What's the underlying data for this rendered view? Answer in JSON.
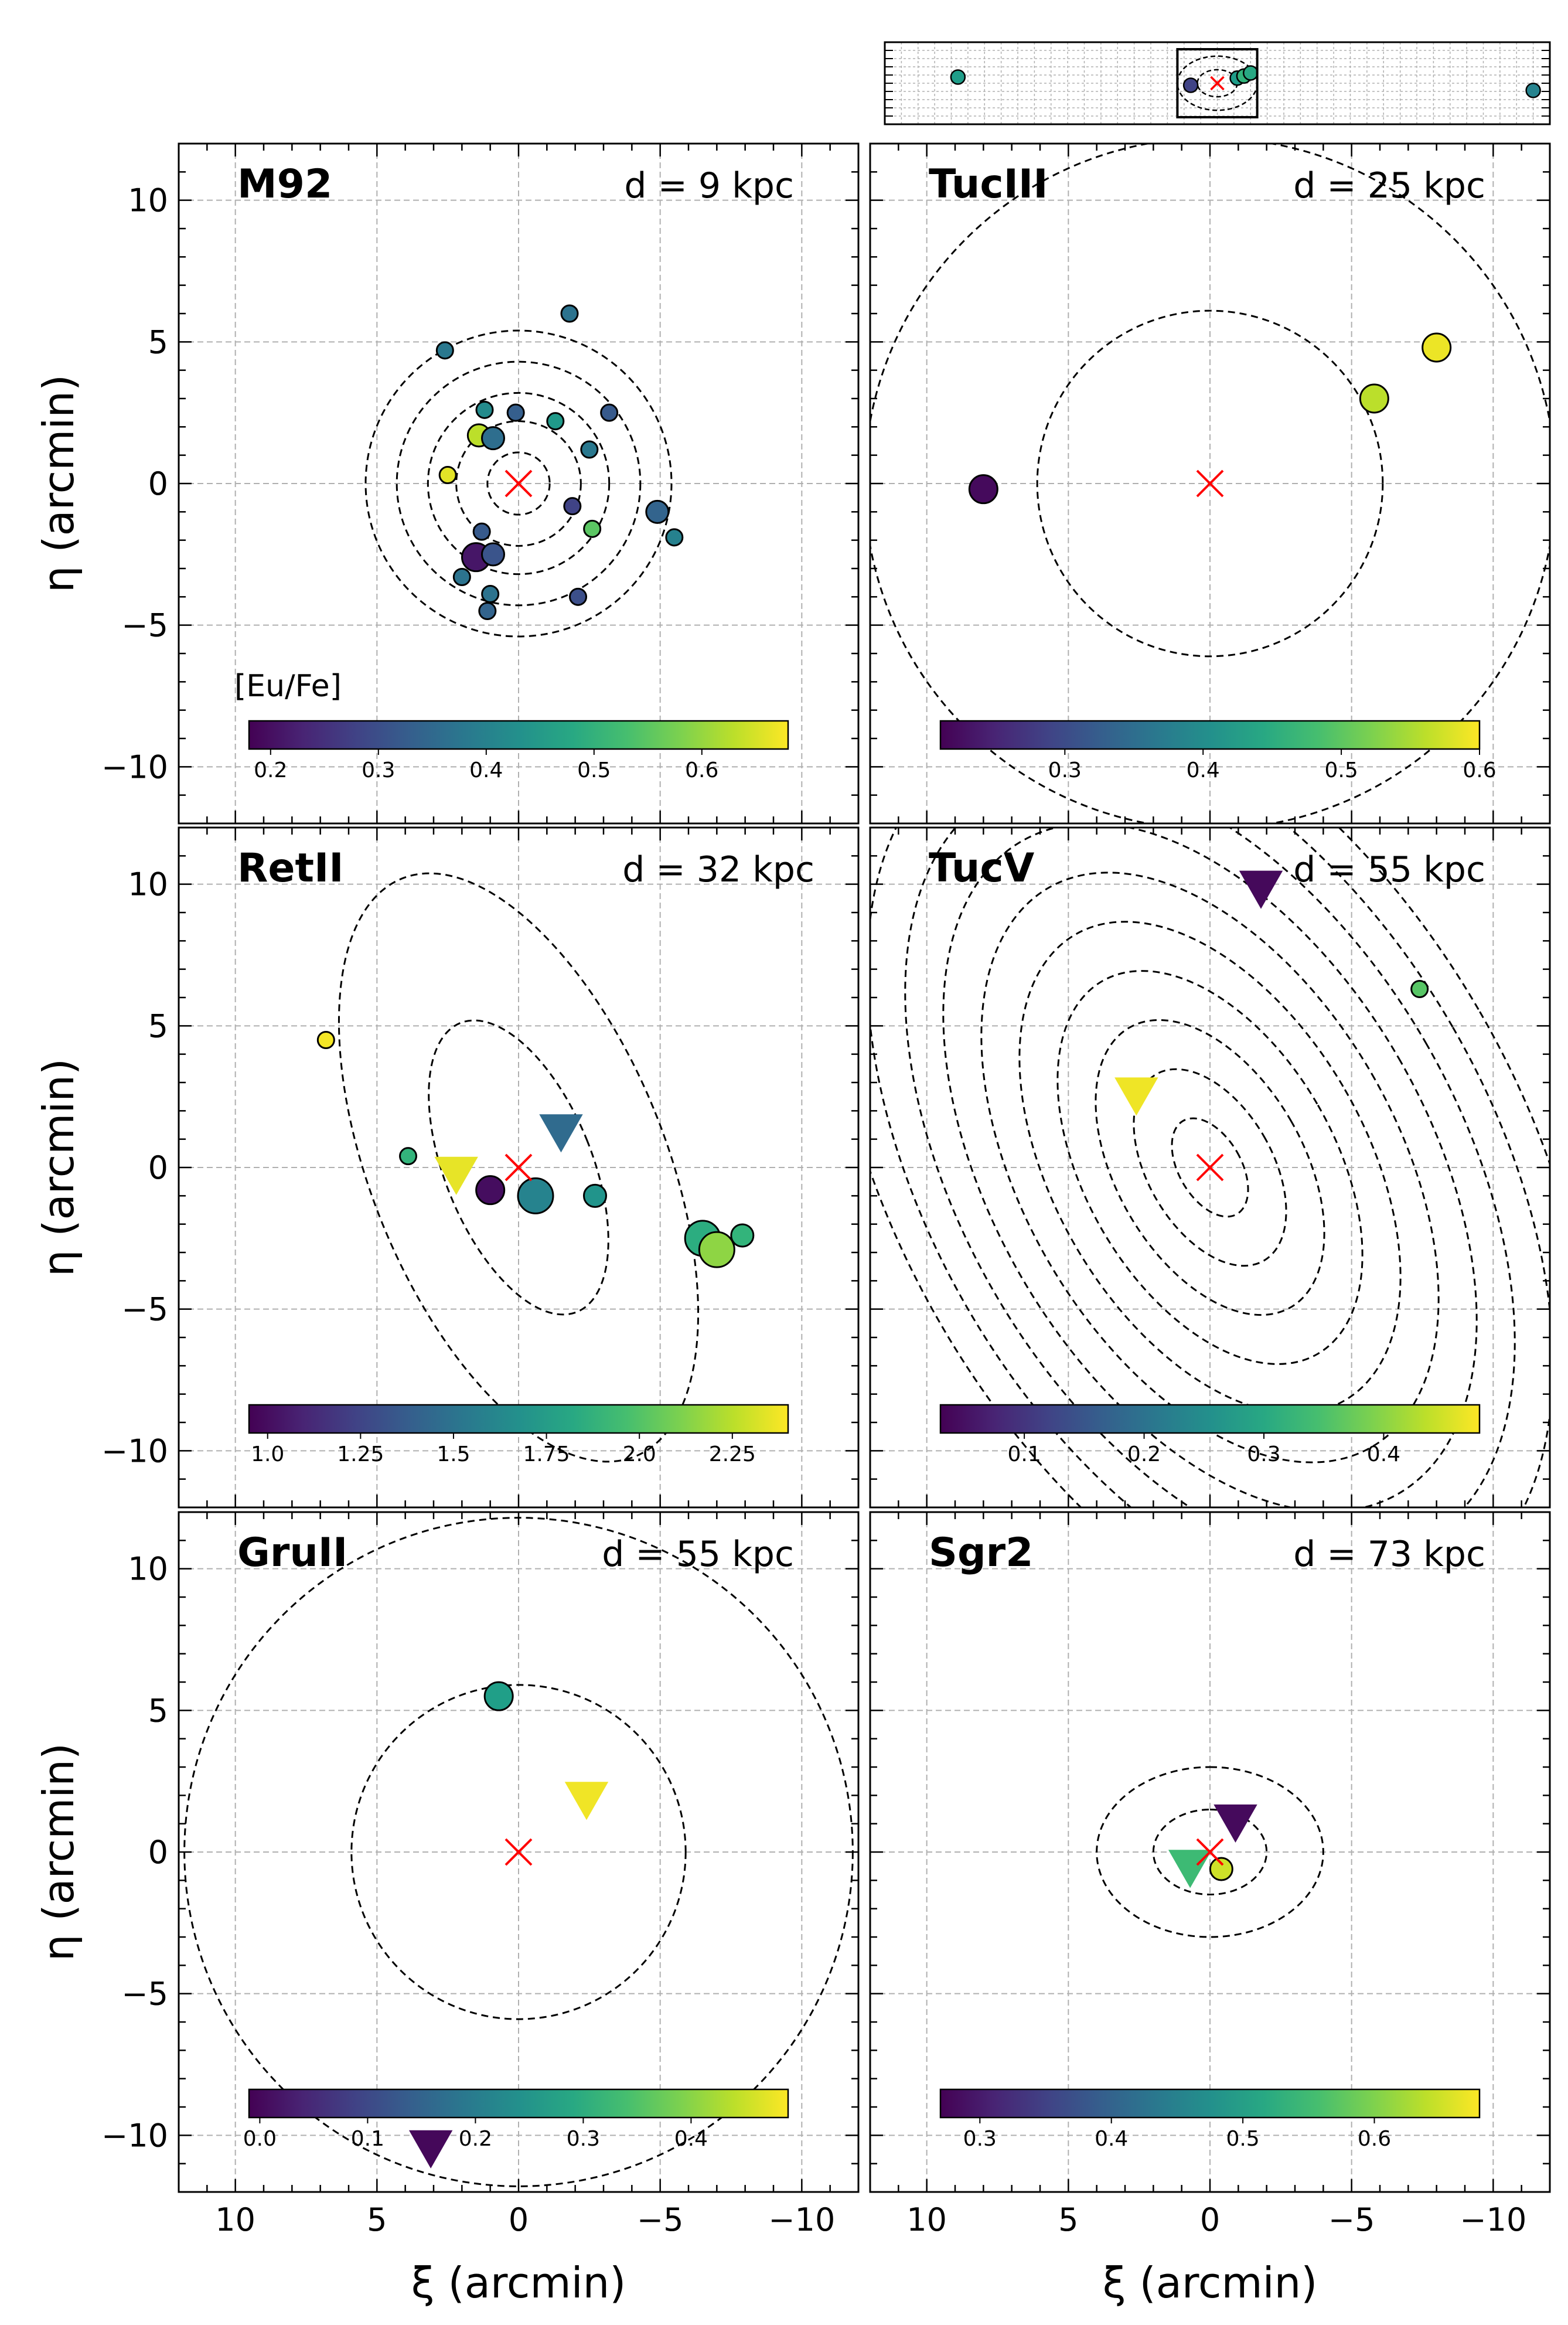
{
  "figure": {
    "x_axis_label": "ξ (arcmin)",
    "y_axis_label": "η (arcmin)"
  },
  "colors": {
    "center_marker": "#ff0000",
    "grid": "#b0b0b0",
    "contour": "#000000"
  },
  "chart_data": [
    {
      "type": "scatter",
      "name": "M92",
      "distance_label": "d = 9 kpc",
      "xlim": [
        12,
        -12
      ],
      "ylim": [
        -12,
        12
      ],
      "xticks": [
        10,
        5,
        0,
        -5,
        -10
      ],
      "yticks": [
        -10,
        -5,
        0,
        5,
        10
      ],
      "colorbar": {
        "title": "[Eu/Fe]",
        "range": [
          0.18,
          0.68
        ],
        "ticks": [
          0.2,
          0.3,
          0.4,
          0.5,
          0.6
        ]
      },
      "contours": [
        {
          "a": 1.1,
          "b": 1.1,
          "pa": 0
        },
        {
          "a": 2.2,
          "b": 2.2,
          "pa": 0
        },
        {
          "a": 3.2,
          "b": 3.2,
          "pa": 0
        },
        {
          "a": 4.3,
          "b": 4.3,
          "pa": 0
        },
        {
          "a": 5.4,
          "b": 5.4,
          "pa": 0
        }
      ],
      "points": [
        {
          "x": 2.6,
          "y": 4.7,
          "v": 0.38,
          "size": "small",
          "marker": "circle"
        },
        {
          "x": -1.8,
          "y": 6.0,
          "v": 0.37,
          "size": "small",
          "marker": "circle"
        },
        {
          "x": 1.2,
          "y": 2.6,
          "v": 0.42,
          "size": "small",
          "marker": "circle"
        },
        {
          "x": 0.1,
          "y": 2.5,
          "v": 0.33,
          "size": "small",
          "marker": "circle"
        },
        {
          "x": -1.3,
          "y": 2.2,
          "v": 0.45,
          "size": "small",
          "marker": "circle"
        },
        {
          "x": -3.2,
          "y": 2.5,
          "v": 0.32,
          "size": "small",
          "marker": "circle"
        },
        {
          "x": 1.4,
          "y": 1.7,
          "v": 0.63,
          "size": "medium",
          "marker": "circle"
        },
        {
          "x": 0.9,
          "y": 1.6,
          "v": 0.36,
          "size": "medium",
          "marker": "circle"
        },
        {
          "x": -2.5,
          "y": 1.2,
          "v": 0.38,
          "size": "small",
          "marker": "circle"
        },
        {
          "x": 2.5,
          "y": 0.3,
          "v": 0.66,
          "size": "small",
          "marker": "circle"
        },
        {
          "x": -1.9,
          "y": -0.8,
          "v": 0.28,
          "size": "small",
          "marker": "circle"
        },
        {
          "x": -4.9,
          "y": -1.0,
          "v": 0.34,
          "size": "medium",
          "marker": "circle"
        },
        {
          "x": -2.6,
          "y": -1.6,
          "v": 0.55,
          "size": "small",
          "marker": "circle"
        },
        {
          "x": -5.5,
          "y": -1.9,
          "v": 0.4,
          "size": "small",
          "marker": "circle"
        },
        {
          "x": 1.3,
          "y": -1.7,
          "v": 0.32,
          "size": "small",
          "marker": "circle"
        },
        {
          "x": 1.5,
          "y": -2.6,
          "v": 0.21,
          "size": "large",
          "marker": "circle"
        },
        {
          "x": 0.9,
          "y": -2.5,
          "v": 0.31,
          "size": "medium",
          "marker": "circle"
        },
        {
          "x": 2.0,
          "y": -3.3,
          "v": 0.37,
          "size": "small",
          "marker": "circle"
        },
        {
          "x": 1.0,
          "y": -3.9,
          "v": 0.37,
          "size": "small",
          "marker": "circle"
        },
        {
          "x": -2.1,
          "y": -4.0,
          "v": 0.3,
          "size": "small",
          "marker": "circle"
        },
        {
          "x": 1.1,
          "y": -4.5,
          "v": 0.34,
          "size": "small",
          "marker": "circle"
        }
      ]
    },
    {
      "type": "scatter",
      "name": "TucIII",
      "distance_label": "d = 25 kpc",
      "xlim": [
        12,
        -12
      ],
      "ylim": [
        -12,
        12
      ],
      "xticks": [
        10,
        5,
        0,
        -5,
        -10
      ],
      "yticks": [
        -10,
        -5,
        0,
        5,
        10
      ],
      "colorbar": {
        "title": "",
        "range": [
          0.21,
          0.6
        ],
        "ticks": [
          0.3,
          0.4,
          0.5,
          0.6
        ]
      },
      "contours": [
        {
          "a": 6.1,
          "b": 6.1,
          "pa": 0
        },
        {
          "a": 12.2,
          "b": 12.2,
          "pa": 0
        }
      ],
      "points": [
        {
          "x": 8.0,
          "y": -0.2,
          "v": 0.22,
          "size": "large",
          "marker": "circle"
        },
        {
          "x": -5.8,
          "y": 3.0,
          "v": 0.56,
          "size": "large",
          "marker": "circle"
        },
        {
          "x": -8.0,
          "y": 4.8,
          "v": 0.59,
          "size": "large",
          "marker": "circle"
        }
      ]
    },
    {
      "type": "scatter",
      "name": "RetII",
      "distance_label": "d = 32 kpc",
      "xlim": [
        12,
        -12
      ],
      "ylim": [
        -12,
        12
      ],
      "xticks": [
        10,
        5,
        0,
        -5,
        -10
      ],
      "yticks": [
        -10,
        -5,
        0,
        5,
        10
      ],
      "colorbar": {
        "title": "",
        "range": [
          0.95,
          2.4
        ],
        "ticks": [
          1.0,
          1.25,
          1.5,
          1.75,
          2.0,
          2.25
        ]
      },
      "contours": [
        {
          "a": 5.5,
          "b": 2.6,
          "pa": 22
        },
        {
          "a": 11.0,
          "b": 5.2,
          "pa": 22
        }
      ],
      "points": [
        {
          "x": 6.8,
          "y": 4.5,
          "v": 2.38,
          "size": "small",
          "marker": "circle"
        },
        {
          "x": 3.9,
          "y": 0.4,
          "v": 1.9,
          "size": "small",
          "marker": "circle"
        },
        {
          "x": 2.2,
          "y": -0.2,
          "v": 2.35,
          "size": "large",
          "marker": "triangle"
        },
        {
          "x": -1.5,
          "y": 1.3,
          "v": 1.45,
          "size": "large",
          "marker": "triangle"
        },
        {
          "x": 1.0,
          "y": -0.8,
          "v": 1.0,
          "size": "large",
          "marker": "circle"
        },
        {
          "x": -0.6,
          "y": -1.0,
          "v": 1.6,
          "size": "xlarge",
          "marker": "circle"
        },
        {
          "x": -2.7,
          "y": -1.0,
          "v": 1.7,
          "size": "medium",
          "marker": "circle"
        },
        {
          "x": -6.5,
          "y": -2.5,
          "v": 1.85,
          "size": "xlarge",
          "marker": "circle"
        },
        {
          "x": -7.0,
          "y": -2.9,
          "v": 2.15,
          "size": "xlarge",
          "marker": "circle"
        },
        {
          "x": -7.9,
          "y": -2.4,
          "v": 1.9,
          "size": "medium",
          "marker": "circle"
        }
      ]
    },
    {
      "type": "scatter",
      "name": "TucV",
      "distance_label": "d = 55 kpc",
      "xlim": [
        12,
        -12
      ],
      "ylim": [
        -12,
        12
      ],
      "xticks": [
        10,
        5,
        0,
        -5,
        -10
      ],
      "yticks": [
        -10,
        -5,
        0,
        5,
        10
      ],
      "colorbar": {
        "title": "",
        "range": [
          0.03,
          0.48
        ],
        "ticks": [
          0.1,
          0.2,
          0.3,
          0.4
        ]
      },
      "contours": [
        {
          "a": 1.9,
          "b": 1.1,
          "pa": 30
        },
        {
          "a": 3.8,
          "b": 2.2,
          "pa": 30
        },
        {
          "a": 5.7,
          "b": 3.3,
          "pa": 30
        },
        {
          "a": 7.6,
          "b": 4.4,
          "pa": 30
        },
        {
          "a": 9.5,
          "b": 5.5,
          "pa": 30
        },
        {
          "a": 11.4,
          "b": 6.6,
          "pa": 30
        },
        {
          "a": 13.3,
          "b": 7.7,
          "pa": 30
        },
        {
          "a": 15.2,
          "b": 8.8,
          "pa": 30
        },
        {
          "a": 17.1,
          "b": 9.9,
          "pa": 30
        },
        {
          "a": 19.0,
          "b": 11.0,
          "pa": 30
        }
      ],
      "points": [
        {
          "x": -1.8,
          "y": 9.9,
          "v": 0.04,
          "size": "large",
          "marker": "triangle"
        },
        {
          "x": -7.4,
          "y": 6.3,
          "v": 0.36,
          "size": "small",
          "marker": "circle"
        },
        {
          "x": 2.6,
          "y": 2.6,
          "v": 0.47,
          "size": "large",
          "marker": "triangle"
        }
      ]
    },
    {
      "type": "scatter",
      "name": "GruII",
      "distance_label": "d = 55 kpc",
      "xlim": [
        12,
        -12
      ],
      "ylim": [
        -12,
        12
      ],
      "xticks": [
        10,
        5,
        0,
        -5,
        -10
      ],
      "yticks": [
        -10,
        -5,
        0,
        5,
        10
      ],
      "colorbar": {
        "title": "",
        "range": [
          -0.01,
          0.49
        ],
        "ticks": [
          0.0,
          0.1,
          0.2,
          0.3,
          0.4
        ]
      },
      "contours": [
        {
          "a": 5.9,
          "b": 5.9,
          "pa": 0
        },
        {
          "a": 11.8,
          "b": 11.8,
          "pa": 0
        }
      ],
      "points": [
        {
          "x": 0.7,
          "y": 5.5,
          "v": 0.27,
          "size": "large",
          "marker": "circle"
        },
        {
          "x": -2.4,
          "y": 1.9,
          "v": 0.48,
          "size": "large",
          "marker": "triangle"
        },
        {
          "x": 3.1,
          "y": -10.4,
          "v": 0.0,
          "size": "large",
          "marker": "triangle"
        }
      ]
    },
    {
      "type": "scatter",
      "name": "Sgr2",
      "distance_label": "d = 73 kpc",
      "xlim": [
        12,
        -12
      ],
      "ylim": [
        -12,
        12
      ],
      "xticks": [
        10,
        5,
        0,
        -5,
        -10
      ],
      "yticks": [
        -10,
        -5,
        0,
        5,
        10
      ],
      "colorbar": {
        "title": "",
        "range": [
          0.27,
          0.68
        ],
        "ticks": [
          0.3,
          0.4,
          0.5,
          0.6
        ]
      },
      "contours": [
        {
          "a": 2.0,
          "b": 1.5,
          "pa": 90
        },
        {
          "a": 4.0,
          "b": 3.0,
          "pa": 90
        }
      ],
      "points": [
        {
          "x": -0.9,
          "y": 1.1,
          "v": 0.28,
          "size": "large",
          "marker": "triangle"
        },
        {
          "x": 0.7,
          "y": -0.5,
          "v": 0.55,
          "size": "large",
          "marker": "triangle"
        },
        {
          "x": -0.4,
          "y": -0.6,
          "v": 0.65,
          "size": "medium",
          "marker": "circle"
        }
      ]
    }
  ],
  "overview": {
    "type": "scatter",
    "xlim": [
      100,
      -100
    ],
    "ylim": [
      -20,
      20
    ],
    "points": [
      {
        "x": 78,
        "y": 3.0,
        "v": 0.55
      },
      {
        "x": 8,
        "y": -1.0,
        "v": 0.2
      },
      {
        "x": -6,
        "y": 2.5,
        "v": 0.55
      },
      {
        "x": -8,
        "y": 3.5,
        "v": 0.65
      },
      {
        "x": -10,
        "y": 5.0,
        "v": 0.6
      },
      {
        "x": -95,
        "y": -3.5,
        "v": 0.45
      }
    ],
    "contours": [
      {
        "a": 6,
        "b": 12,
        "pa": 0
      },
      {
        "a": 12,
        "b": 24,
        "pa": 0
      }
    ]
  }
}
